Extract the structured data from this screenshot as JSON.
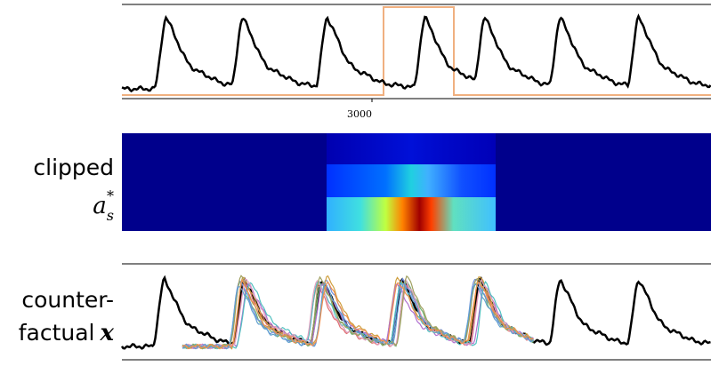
{
  "axis": {
    "tick": "3000"
  },
  "heatmap_label": {
    "line1": "clipped",
    "symbol": "a",
    "subscript": "s",
    "superscript": "*"
  },
  "counterfactual_label": {
    "line1": "counter-",
    "line2": "factual",
    "symbol": "x"
  }
}
